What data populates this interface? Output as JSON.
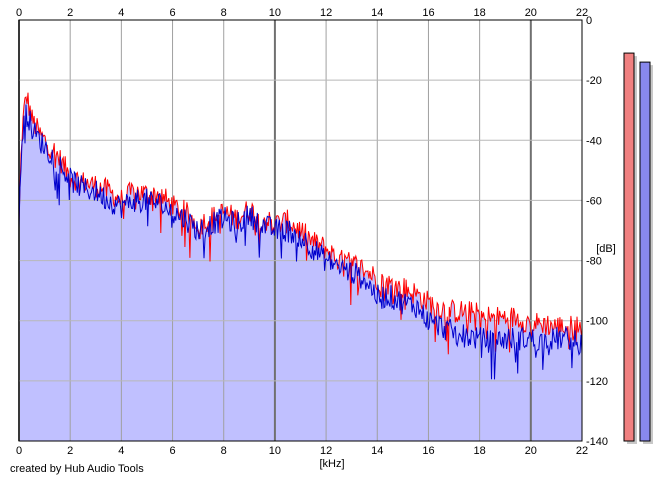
{
  "chart_data": {
    "type": "area",
    "xlabel": "[kHz]",
    "ylabel": "[dB]",
    "xlim": [
      0,
      22
    ],
    "ylim": [
      -140,
      0
    ],
    "x_ticks": [
      0,
      2,
      4,
      6,
      8,
      10,
      12,
      14,
      16,
      18,
      20,
      22
    ],
    "y_ticks": [
      0,
      -20,
      -40,
      -60,
      -80,
      -100,
      -120,
      -140
    ],
    "grid": true,
    "series": [
      {
        "color": "#ff0000",
        "x": [
          0,
          0.1,
          0.2,
          0.3,
          0.5,
          0.8,
          1.0,
          1.5,
          2.0,
          2.5,
          3.0,
          3.5,
          4.0,
          4.5,
          5.0,
          5.5,
          6.0,
          6.5,
          7.0,
          7.5,
          8.0,
          8.5,
          9.0,
          9.5,
          10.0,
          10.5,
          11.0,
          11.5,
          12.0,
          12.5,
          13.0,
          13.5,
          14.0,
          14.5,
          15.0,
          15.5,
          16.0,
          16.5,
          17.0,
          17.5,
          18.0,
          18.5,
          19.0,
          19.5,
          20.0,
          20.5,
          21.0,
          21.5,
          22.0
        ],
        "y": [
          -68,
          -40,
          -30,
          -25,
          -33,
          -38,
          -40,
          -45,
          -52,
          -54,
          -55,
          -57,
          -60,
          -57,
          -58,
          -58,
          -62,
          -64,
          -68,
          -66,
          -64,
          -66,
          -63,
          -66,
          -68,
          -67,
          -70,
          -74,
          -76,
          -80,
          -81,
          -83,
          -86,
          -88,
          -89,
          -91,
          -94,
          -96,
          -97,
          -97,
          -98,
          -99,
          -99,
          -99,
          -101,
          -101,
          -102,
          -102,
          -102
        ]
      },
      {
        "color": "#0000cc",
        "x": [
          0,
          0.1,
          0.2,
          0.3,
          0.5,
          0.8,
          1.0,
          1.5,
          2.0,
          2.5,
          3.0,
          3.5,
          4.0,
          4.5,
          5.0,
          5.5,
          6.0,
          6.5,
          7.0,
          7.5,
          8.0,
          8.5,
          9.0,
          9.5,
          10.0,
          10.5,
          11.0,
          11.5,
          12.0,
          12.5,
          13.0,
          13.5,
          14.0,
          14.5,
          15.0,
          15.5,
          16.0,
          16.5,
          17.0,
          17.5,
          18.0,
          18.5,
          19.0,
          19.5,
          20.0,
          20.5,
          21.0,
          21.5,
          22.0
        ],
        "y": [
          -70,
          -42,
          -32,
          -30,
          -36,
          -40,
          -42,
          -47,
          -53,
          -56,
          -57,
          -60,
          -62,
          -60,
          -60,
          -61,
          -64,
          -66,
          -70,
          -68,
          -66,
          -68,
          -65,
          -68,
          -70,
          -70,
          -72,
          -76,
          -80,
          -82,
          -84,
          -86,
          -92,
          -92,
          -94,
          -95,
          -100,
          -102,
          -104,
          -105,
          -106,
          -107,
          -106,
          -106,
          -106,
          -107,
          -106,
          -106,
          -108
        ]
      }
    ],
    "level_meters": [
      {
        "color": "#f08080",
        "value_db": -11
      },
      {
        "color": "#8888ee",
        "value_db": -14
      }
    ]
  },
  "credit": "created by Hub Audio Tools"
}
